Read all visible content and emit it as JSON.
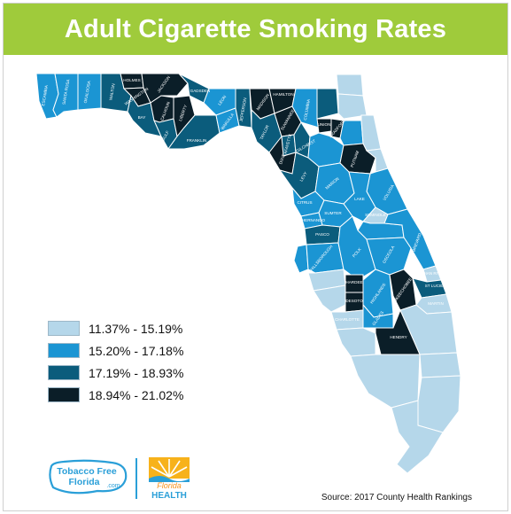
{
  "title": "Adult Cigarette Smoking Rates",
  "colors": {
    "banner": "#9fcb3b",
    "class_1": "#b5d7ea",
    "class_2": "#1b95d3",
    "class_3": "#0b5c7c",
    "class_4": "#0b1e28",
    "county_border": "#ffffff"
  },
  "legend": [
    {
      "label": "11.37% - 15.19%",
      "color": "#b5d7ea"
    },
    {
      "label": "15.20% - 17.18%",
      "color": "#1b95d3"
    },
    {
      "label": "17.19% - 18.93%",
      "color": "#0b5c7c"
    },
    {
      "label": "18.94% - 21.02%",
      "color": "#0b1e28"
    }
  ],
  "county_labels": [
    {
      "name": "ESCAMBIA"
    },
    {
      "name": "SANTA ROSA"
    },
    {
      "name": "OKALOOSA"
    },
    {
      "name": "WALTON"
    },
    {
      "name": "HOLMES"
    },
    {
      "name": "WASHINGTON"
    },
    {
      "name": "JACKSON"
    },
    {
      "name": "BAY"
    },
    {
      "name": "CALHOUN"
    },
    {
      "name": "GULF"
    },
    {
      "name": "LIBERTY"
    },
    {
      "name": "GADSDEN"
    },
    {
      "name": "FRANKLIN"
    },
    {
      "name": "LEON"
    },
    {
      "name": "WAKULLA"
    },
    {
      "name": "JEFFERSON"
    },
    {
      "name": "MADISON"
    },
    {
      "name": "TAYLOR"
    },
    {
      "name": "HAMILTON"
    },
    {
      "name": "SUWANNEE"
    },
    {
      "name": "LAFAYETTE"
    },
    {
      "name": "DIXIE"
    },
    {
      "name": "COLUMBIA"
    },
    {
      "name": "UNION"
    },
    {
      "name": "BRADFORD"
    },
    {
      "name": "GILCHRIST"
    },
    {
      "name": "LEVY"
    },
    {
      "name": "PUTNAM"
    },
    {
      "name": "CITRUS"
    },
    {
      "name": "HERNANDO"
    },
    {
      "name": "PASCO"
    },
    {
      "name": "HILLSBOROUGH"
    },
    {
      "name": "POLK"
    },
    {
      "name": "BREVARD"
    },
    {
      "name": "INDIAN RIVER"
    },
    {
      "name": "HARDEE"
    },
    {
      "name": "DESOTO"
    },
    {
      "name": "OKEECHOBEE"
    },
    {
      "name": "ST LUCIE"
    },
    {
      "name": "MARTIN"
    },
    {
      "name": "GLADES"
    },
    {
      "name": "CHARLOTTE"
    },
    {
      "name": "HENDRY"
    },
    {
      "name": "HIGHLANDS"
    },
    {
      "name": "OSCEOLA"
    },
    {
      "name": "SEMINOLE"
    },
    {
      "name": "VOLUSIA"
    },
    {
      "name": "LAKE"
    },
    {
      "name": "SUMTER"
    },
    {
      "name": "MARION"
    }
  ],
  "logos": {
    "tobacco_free": "Tobacco Free Florida .com",
    "florida_health_1": "Florida",
    "florida_health_2": "HEALTH"
  },
  "source": "Source: 2017 County Health Rankings"
}
